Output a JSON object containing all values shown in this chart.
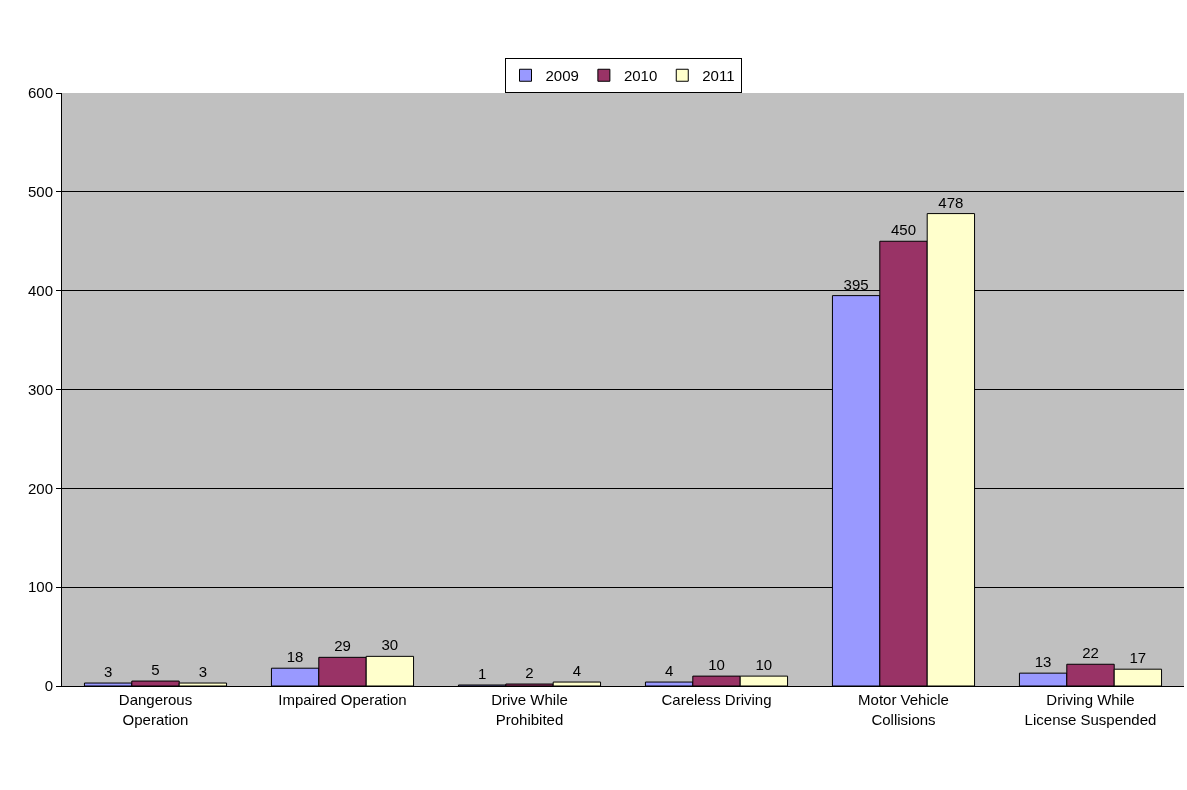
{
  "chart_data": {
    "type": "bar",
    "categories": [
      "Dangerous Operation",
      "Impaired Operation",
      "Drive While Prohibited",
      "Careless Driving",
      "Motor Vehicle Collisions",
      "Driving While License Suspended"
    ],
    "series": [
      {
        "name": "2009",
        "color": "#9999ff",
        "values": [
          3,
          18,
          1,
          4,
          395,
          13
        ]
      },
      {
        "name": "2010",
        "color": "#993366",
        "values": [
          5,
          29,
          2,
          10,
          450,
          22
        ]
      },
      {
        "name": "2011",
        "color": "#ffffcc",
        "values": [
          3,
          30,
          4,
          10,
          478,
          17
        ]
      }
    ],
    "ylim": [
      0,
      600
    ],
    "yticks": [
      0,
      100,
      200,
      300,
      400,
      500,
      600
    ],
    "grid": "y",
    "legend": "top",
    "data_labels": true
  }
}
